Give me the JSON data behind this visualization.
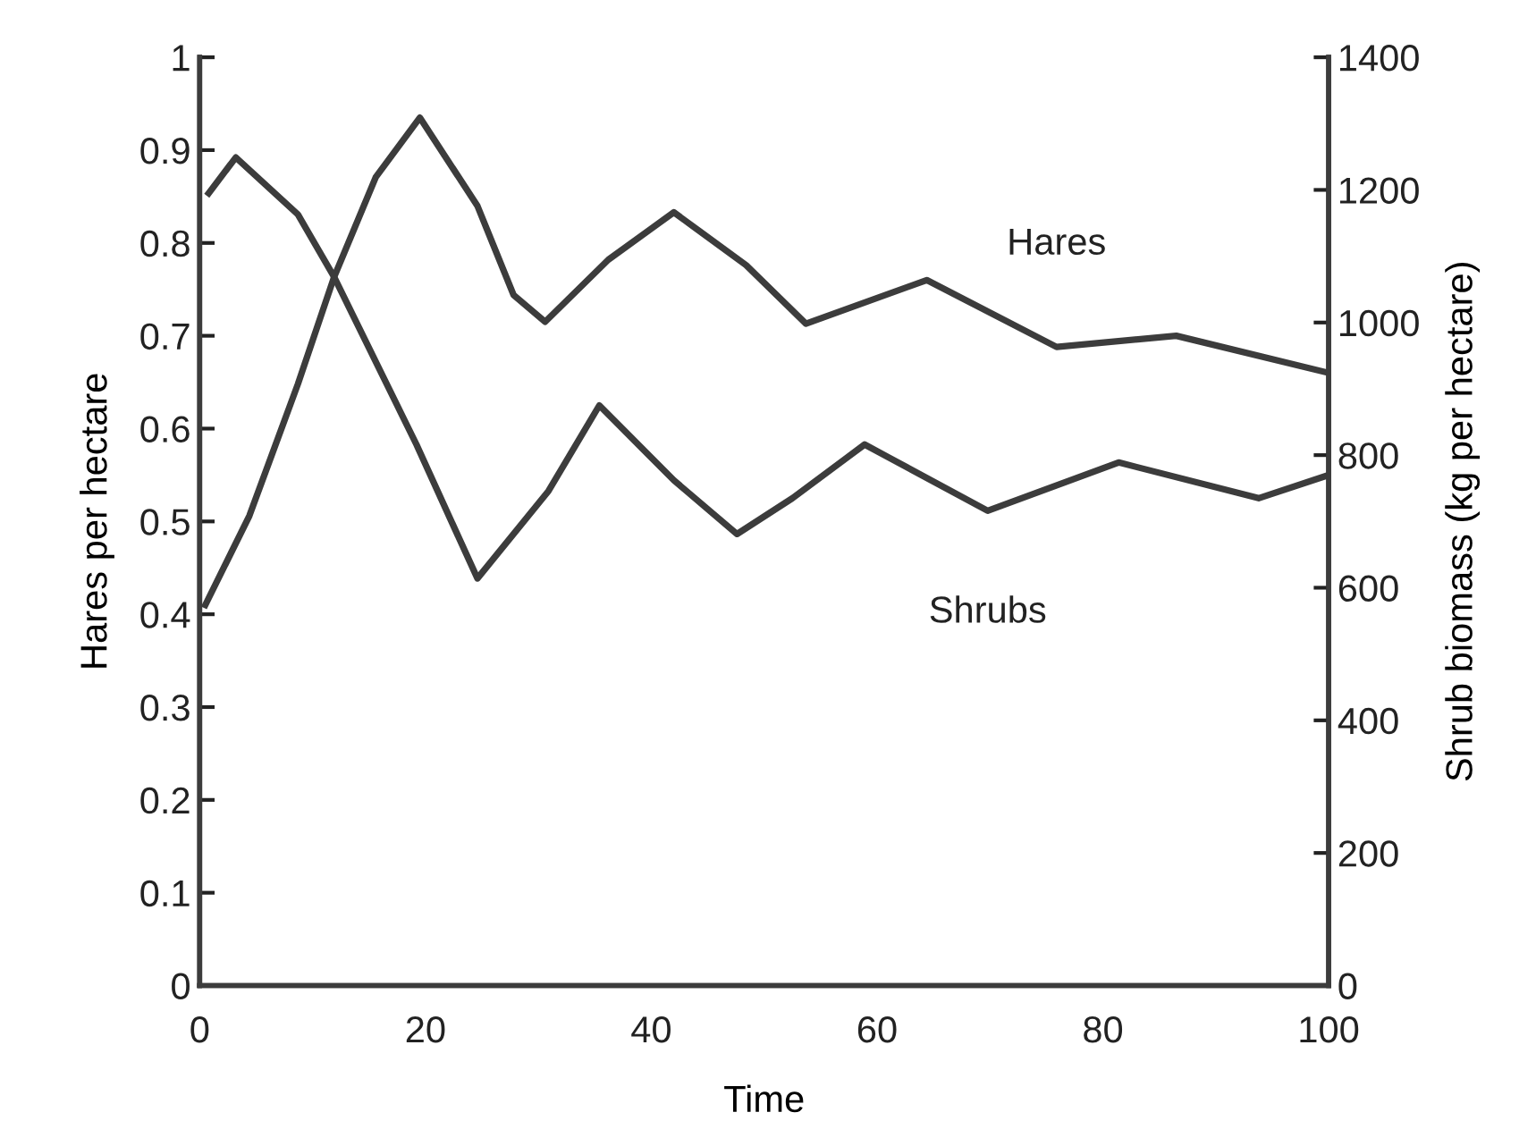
{
  "chart_data": {
    "type": "line",
    "xlabel": "Time",
    "ylabel": "Hares per hectare",
    "y2label": "Shrub biomass (kg per hectare)",
    "xlim": [
      0,
      100
    ],
    "xticks": [
      0,
      20,
      40,
      60,
      80,
      100
    ],
    "ylim": [
      0,
      1
    ],
    "yticks": [
      0,
      0.1,
      0.2,
      0.3,
      0.4,
      0.5,
      0.6,
      0.7,
      0.8,
      0.9,
      1
    ],
    "y2lim": [
      0,
      1400
    ],
    "y2ticks": [
      0,
      200,
      400,
      600,
      800,
      1000,
      1200,
      1400
    ],
    "grid": false,
    "legend": false,
    "marker": "none",
    "line_style": "solid",
    "series": [
      {
        "name": "Hares",
        "color": "#3c3c3c",
        "x": [
          0.5,
          4.4,
          8.7,
          11.9,
          15.6,
          19.5,
          24.6,
          27.8,
          30.6,
          36.2,
          42,
          48.4,
          53.7,
          64.4,
          75.9,
          86.5,
          100
        ],
        "values": [
          0.41,
          0.506,
          0.648,
          0.763,
          0.871,
          0.935,
          0.84,
          0.744,
          0.715,
          0.782,
          0.833,
          0.776,
          0.713,
          0.76,
          0.688,
          0.7,
          0.66
        ]
      },
      {
        "name": "Shrubs",
        "axis": "y2",
        "color": "#3c3c3c",
        "x": [
          0.8,
          3.2,
          8.7,
          11.9,
          19.2,
          24.6,
          30.9,
          35.4,
          42,
          47.6,
          52.5,
          58.9,
          69.8,
          81.4,
          93.8,
          100
        ],
        "values": [
          1195,
          1249,
          1163,
          1069,
          816,
          614,
          746,
          875,
          762,
          681,
          735,
          816,
          716,
          789,
          735,
          770
        ]
      }
    ]
  }
}
